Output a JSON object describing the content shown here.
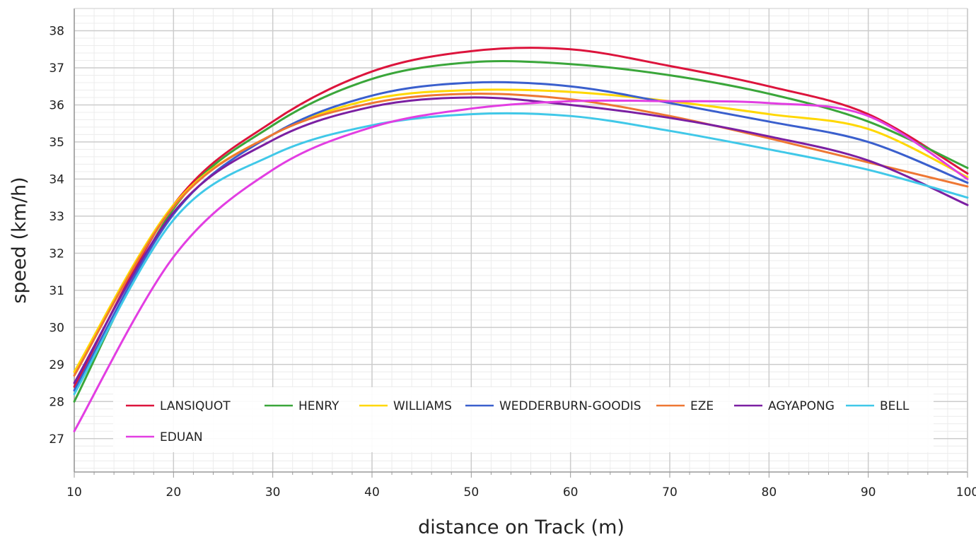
{
  "chart_data": {
    "type": "line",
    "title": "",
    "xlabel": "distance on Track (m)",
    "ylabel": "speed (km/h)",
    "xlim": [
      10,
      100
    ],
    "ylim": [
      26.1,
      38.6
    ],
    "x_ticks": [
      10,
      20,
      30,
      40,
      50,
      60,
      70,
      80,
      90,
      100
    ],
    "y_ticks": [
      27,
      28,
      29,
      30,
      31,
      32,
      33,
      34,
      35,
      36,
      37,
      38
    ],
    "grid": true,
    "legend_position": "bottom-inside",
    "x": [
      10,
      20,
      30,
      40,
      50,
      60,
      70,
      80,
      90,
      100
    ],
    "series": [
      {
        "name": "LANSIQUOT",
        "color": "#dc143c",
        "values": [
          28.4,
          33.3,
          35.55,
          36.9,
          37.45,
          37.5,
          37.05,
          36.5,
          35.75,
          34.15
        ]
      },
      {
        "name": "HENRY",
        "color": "#3aa63a",
        "values": [
          28.0,
          33.2,
          35.45,
          36.7,
          37.15,
          37.1,
          36.8,
          36.3,
          35.55,
          34.3
        ]
      },
      {
        "name": "WILLIAMS",
        "color": "#ffd700",
        "values": [
          28.8,
          33.3,
          35.2,
          36.15,
          36.4,
          36.35,
          36.1,
          35.75,
          35.35,
          34.05
        ]
      },
      {
        "name": "WEDDERBURN-GOODIS",
        "color": "#3a5fcd",
        "values": [
          28.3,
          33.05,
          35.2,
          36.25,
          36.6,
          36.5,
          36.05,
          35.55,
          35.0,
          33.9
        ]
      },
      {
        "name": "EZE",
        "color": "#ee7733",
        "values": [
          28.7,
          33.25,
          35.2,
          36.05,
          36.3,
          36.15,
          35.7,
          35.1,
          34.45,
          33.8
        ]
      },
      {
        "name": "AGYAPONG",
        "color": "#7b1fa2",
        "values": [
          28.5,
          33.1,
          35.05,
          35.95,
          36.2,
          36.0,
          35.65,
          35.15,
          34.5,
          33.3
        ]
      },
      {
        "name": "BELL",
        "color": "#40c8e8",
        "values": [
          28.2,
          32.9,
          34.65,
          35.45,
          35.75,
          35.7,
          35.3,
          34.8,
          34.25,
          33.5
        ]
      },
      {
        "name": "EDUAN",
        "color": "#e23ee2",
        "values": [
          27.2,
          31.9,
          34.25,
          35.4,
          35.9,
          36.1,
          36.1,
          36.05,
          35.7,
          34.0
        ]
      }
    ]
  }
}
